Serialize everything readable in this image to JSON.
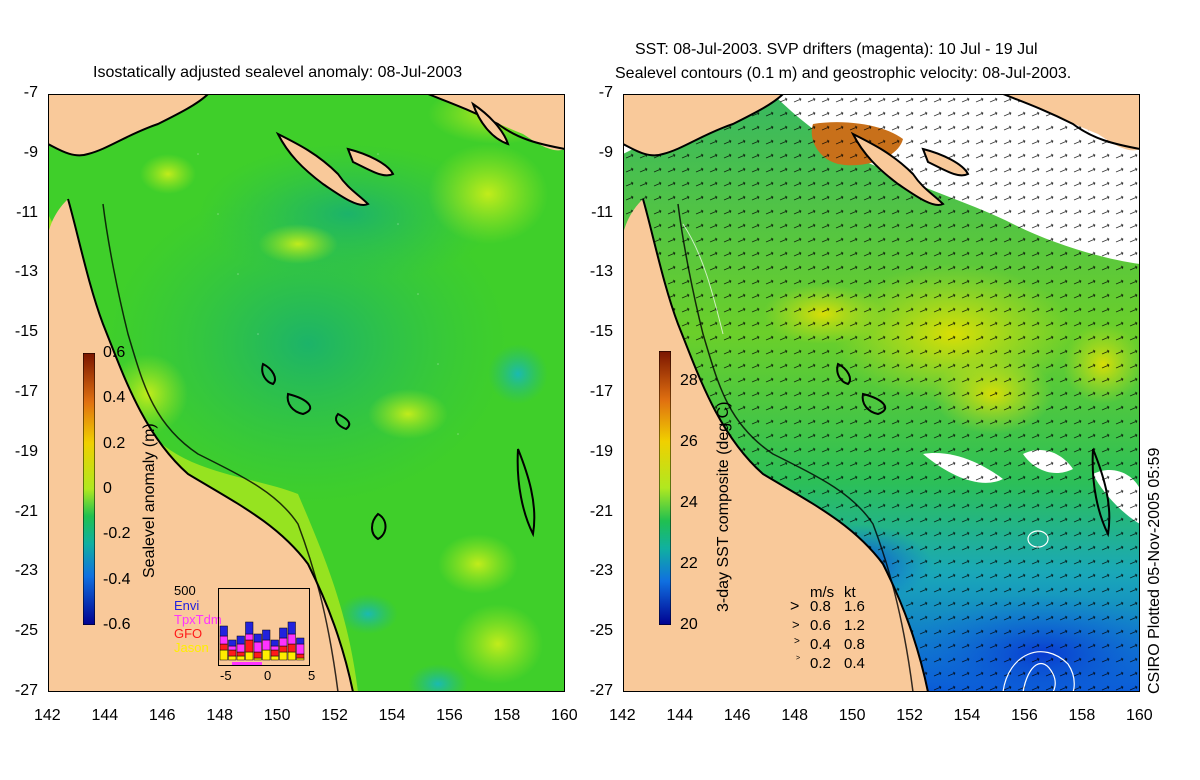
{
  "left_panel": {
    "title": "Isostatically adjusted sealevel anomaly: 08-Jul-2003",
    "colorbar_label": "Sealevel anomaly (m)",
    "colorbar_ticks": [
      "0.6",
      "0.4",
      "0.2",
      "0",
      "-0.2",
      "-0.4",
      "-0.6"
    ],
    "inset": {
      "count_label": "500",
      "legend": [
        {
          "label": "Envi",
          "color": "#2222dd"
        },
        {
          "label": "TpxTdm",
          "color": "#ff33ff"
        },
        {
          "label": "GFO",
          "color": "#ff1a1a"
        },
        {
          "label": "Jason",
          "color": "#ffee00"
        }
      ],
      "x_ticks": [
        "-5",
        "0",
        "5"
      ]
    }
  },
  "right_panel": {
    "title_line1": "SST: 08-Jul-2003. SVP drifters (magenta): 10 Jul - 19 Jul",
    "title_line2": "Sealevel contours (0.1 m) and geostrophic velocity: 08-Jul-2003.",
    "colorbar_label": "3-day SST composite (deg C)",
    "colorbar_ticks": [
      "28",
      "26",
      "24",
      "22",
      "20"
    ],
    "velocity_legend": {
      "header_ms": "m/s",
      "header_kt": "kt",
      "rows": [
        {
          "ms": "0.8",
          "kt": "1.6"
        },
        {
          "ms": "0.6",
          "kt": "1.2"
        },
        {
          "ms": "0.4",
          "kt": "0.8"
        },
        {
          "ms": "0.2",
          "kt": "0.4"
        }
      ]
    }
  },
  "axes": {
    "y_ticks": [
      "-7",
      "-9",
      "-11",
      "-13",
      "-15",
      "-17",
      "-19",
      "-21",
      "-23",
      "-25",
      "-27"
    ],
    "x_ticks": [
      "142",
      "144",
      "146",
      "148",
      "150",
      "152",
      "154",
      "156",
      "158",
      "160"
    ]
  },
  "credit": "CSIRO Plotted 05-Nov-2005 05:59",
  "colors": {
    "land": "#f9c99a",
    "sea_base": "#3fcf2a",
    "sst_base": "#3fbf3a"
  }
}
